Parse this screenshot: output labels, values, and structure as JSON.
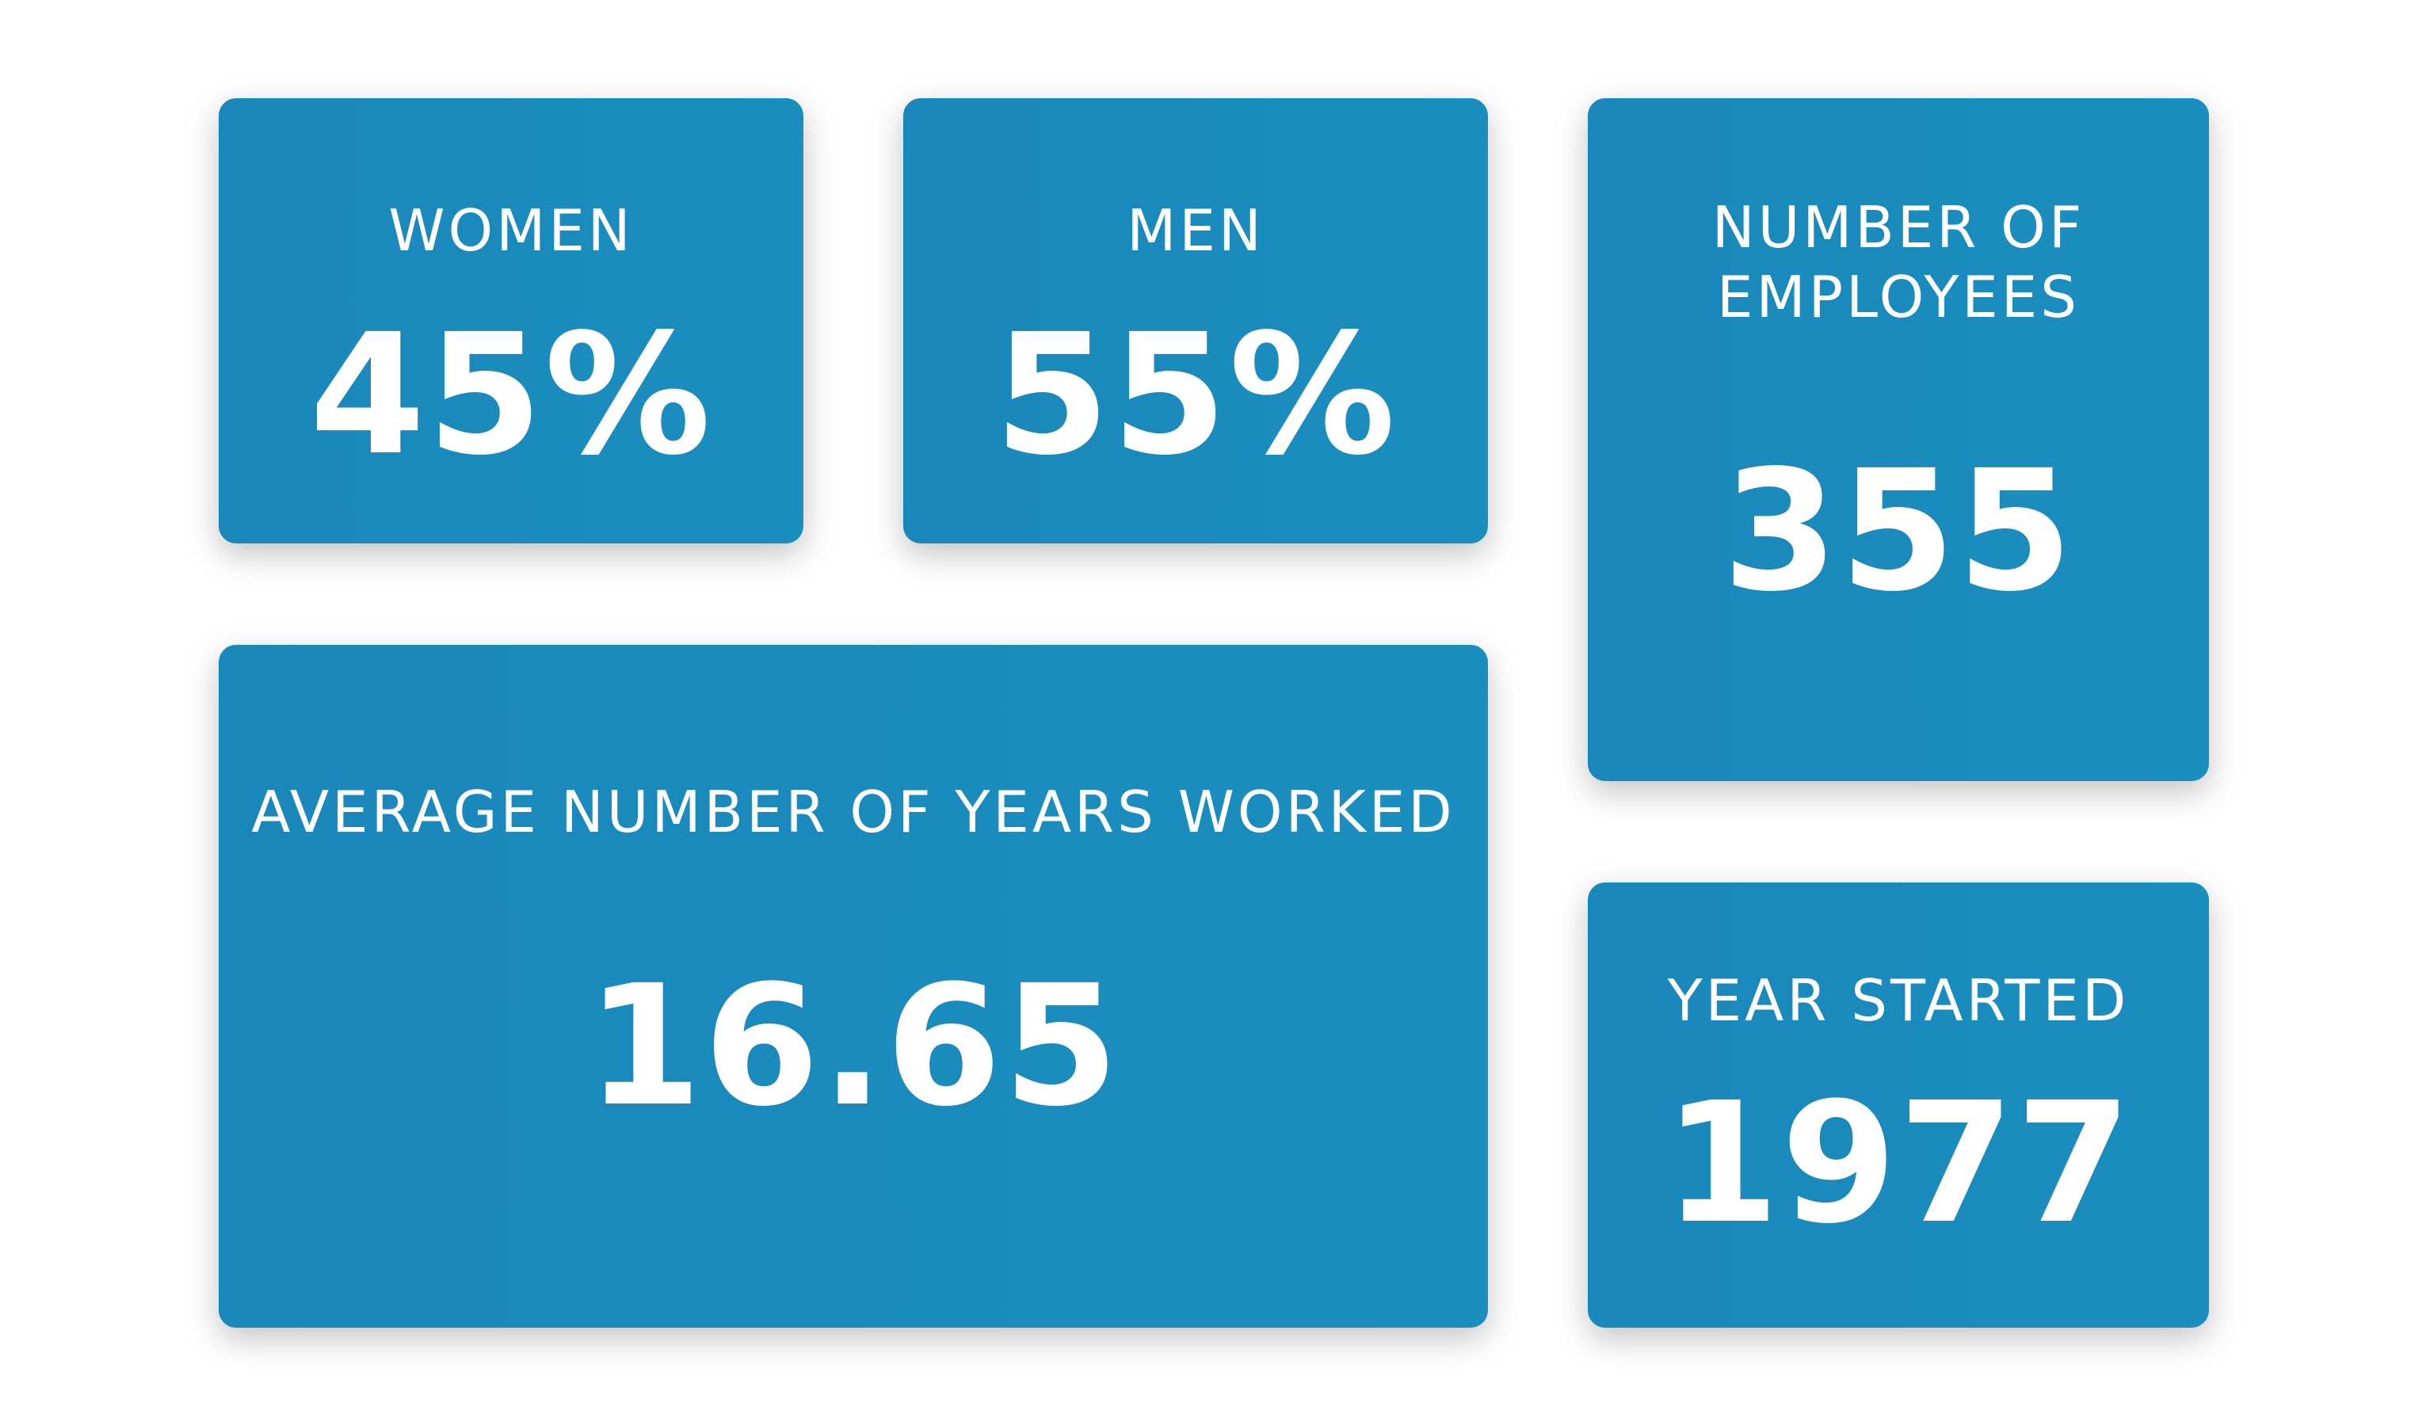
{
  "cards": {
    "women": {
      "label": "WOMEN",
      "value": "45%"
    },
    "men": {
      "label": "MEN",
      "value": "55%"
    },
    "employees": {
      "label_line_1": "NUMBER OF",
      "label_line_2": "EMPLOYEES",
      "value": "355"
    },
    "average_years": {
      "label": "AVERAGE NUMBER OF YEARS WORKED",
      "value": "16.65"
    },
    "year_started": {
      "label": "YEAR STARTED",
      "value": "1977"
    }
  },
  "colors": {
    "card_background": "#1a8abd",
    "text": "#ffffff",
    "page_background": "#ffffff"
  }
}
